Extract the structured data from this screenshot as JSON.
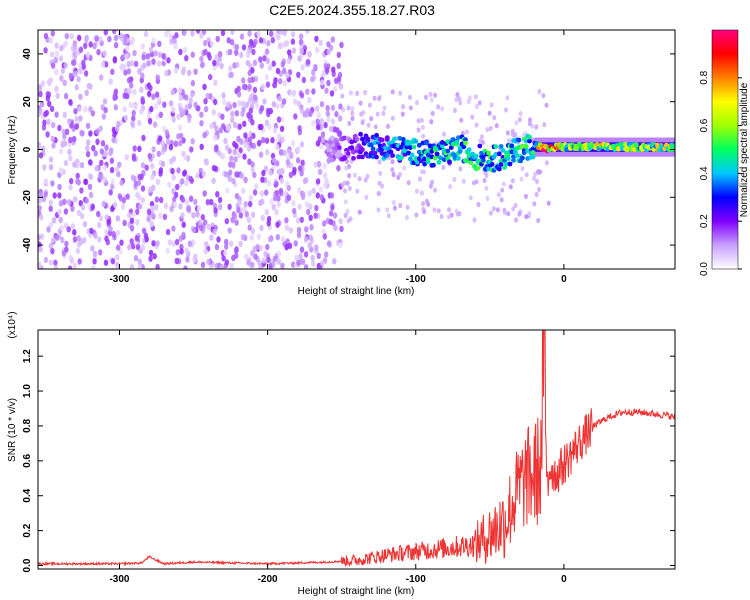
{
  "title": "C2E5.2024.355.18.27.R03",
  "chart_data": [
    {
      "type": "heatmap",
      "xlabel": "Height of straight line (km)",
      "ylabel": "Frequency (Hz)",
      "xlim": [
        -355,
        75
      ],
      "ylim": [
        -50,
        50
      ],
      "x_ticks": [
        -300,
        -200,
        -100,
        0
      ],
      "x_tick_labels": [
        "-300",
        "-200",
        "-100",
        "0"
      ],
      "y_ticks": [
        -40,
        -20,
        0,
        20,
        40
      ],
      "y_tick_labels": [
        "-40",
        "-20",
        "0",
        "20",
        "40"
      ],
      "colorbar": {
        "label": "Normalized spectral amplitude",
        "range": [
          0,
          1
        ],
        "ticks": [
          0.0,
          0.2,
          0.4,
          0.6,
          0.8
        ],
        "tick_labels": [
          "0.0",
          "0.2",
          "0.4",
          "0.6",
          "0.8"
        ],
        "colors": [
          "#ffffff",
          "#c8a0ff",
          "#8000ff",
          "#0000ff",
          "#00c8ff",
          "#00ff60",
          "#a0ff00",
          "#ffff00",
          "#ff8000",
          "#ff0000",
          "#ff0080"
        ]
      },
      "noise_region": {
        "x_range": [
          -355,
          -150
        ],
        "freq_range": [
          -50,
          50
        ],
        "amplitude": 0.12
      },
      "signal_track": {
        "x": [
          -160,
          -145,
          -130,
          -120,
          -110,
          -100,
          -90,
          -80,
          -70,
          -60,
          -50,
          -40,
          -30,
          -20,
          -15,
          -10,
          -5,
          0,
          10,
          20,
          30,
          40,
          50,
          60,
          75
        ],
        "freq": [
          0,
          1,
          2,
          1,
          0,
          -1,
          -2,
          -2,
          1,
          -3,
          -4,
          -3,
          0,
          2,
          1,
          0,
          1,
          1,
          1,
          1,
          1,
          1,
          1,
          1,
          1
        ],
        "amplitude": [
          0.12,
          0.2,
          0.35,
          0.4,
          0.42,
          0.45,
          0.48,
          0.5,
          0.52,
          0.5,
          0.5,
          0.48,
          0.52,
          0.55,
          0.95,
          0.9,
          0.85,
          0.6,
          0.7,
          0.75,
          0.7,
          0.72,
          0.68,
          0.7,
          0.7
        ]
      }
    },
    {
      "type": "line",
      "xlabel": "Height of straight line (km)",
      "ylabel": "SNR (10 * v/v)",
      "y_scale_note": "(x10⁴)",
      "xlim": [
        -355,
        75
      ],
      "ylim": [
        -0.02,
        1.35
      ],
      "x_ticks": [
        -300,
        -200,
        -100,
        0
      ],
      "x_tick_labels": [
        "-300",
        "-200",
        "-100",
        "0"
      ],
      "y_ticks": [
        0.0,
        0.2,
        0.4,
        0.6,
        0.8,
        1.0,
        1.2
      ],
      "y_tick_labels": [
        "0.0",
        "0.2",
        "0.4",
        "0.6",
        "0.8",
        "1.0",
        "1.2"
      ],
      "color": "#ee3333",
      "series": [
        {
          "x": [
            -355,
            -300,
            -285,
            -280,
            -270,
            -250,
            -200,
            -160,
            -140,
            -120,
            -100,
            -80,
            -60,
            -50,
            -40,
            -35,
            -30,
            -25,
            -20,
            -17,
            -15,
            -14,
            -13,
            -12,
            -10,
            -5,
            0,
            10,
            20,
            30,
            40,
            50,
            60,
            70,
            75
          ],
          "y": [
            0.01,
            0.01,
            0.015,
            0.05,
            0.01,
            0.02,
            0.01,
            0.02,
            0.03,
            0.06,
            0.08,
            0.1,
            0.12,
            0.18,
            0.25,
            0.35,
            0.45,
            0.5,
            0.52,
            0.55,
            0.6,
            1.35,
            0.62,
            0.58,
            0.56,
            0.52,
            0.58,
            0.7,
            0.8,
            0.85,
            0.88,
            0.88,
            0.87,
            0.86,
            0.85
          ]
        }
      ]
    }
  ]
}
